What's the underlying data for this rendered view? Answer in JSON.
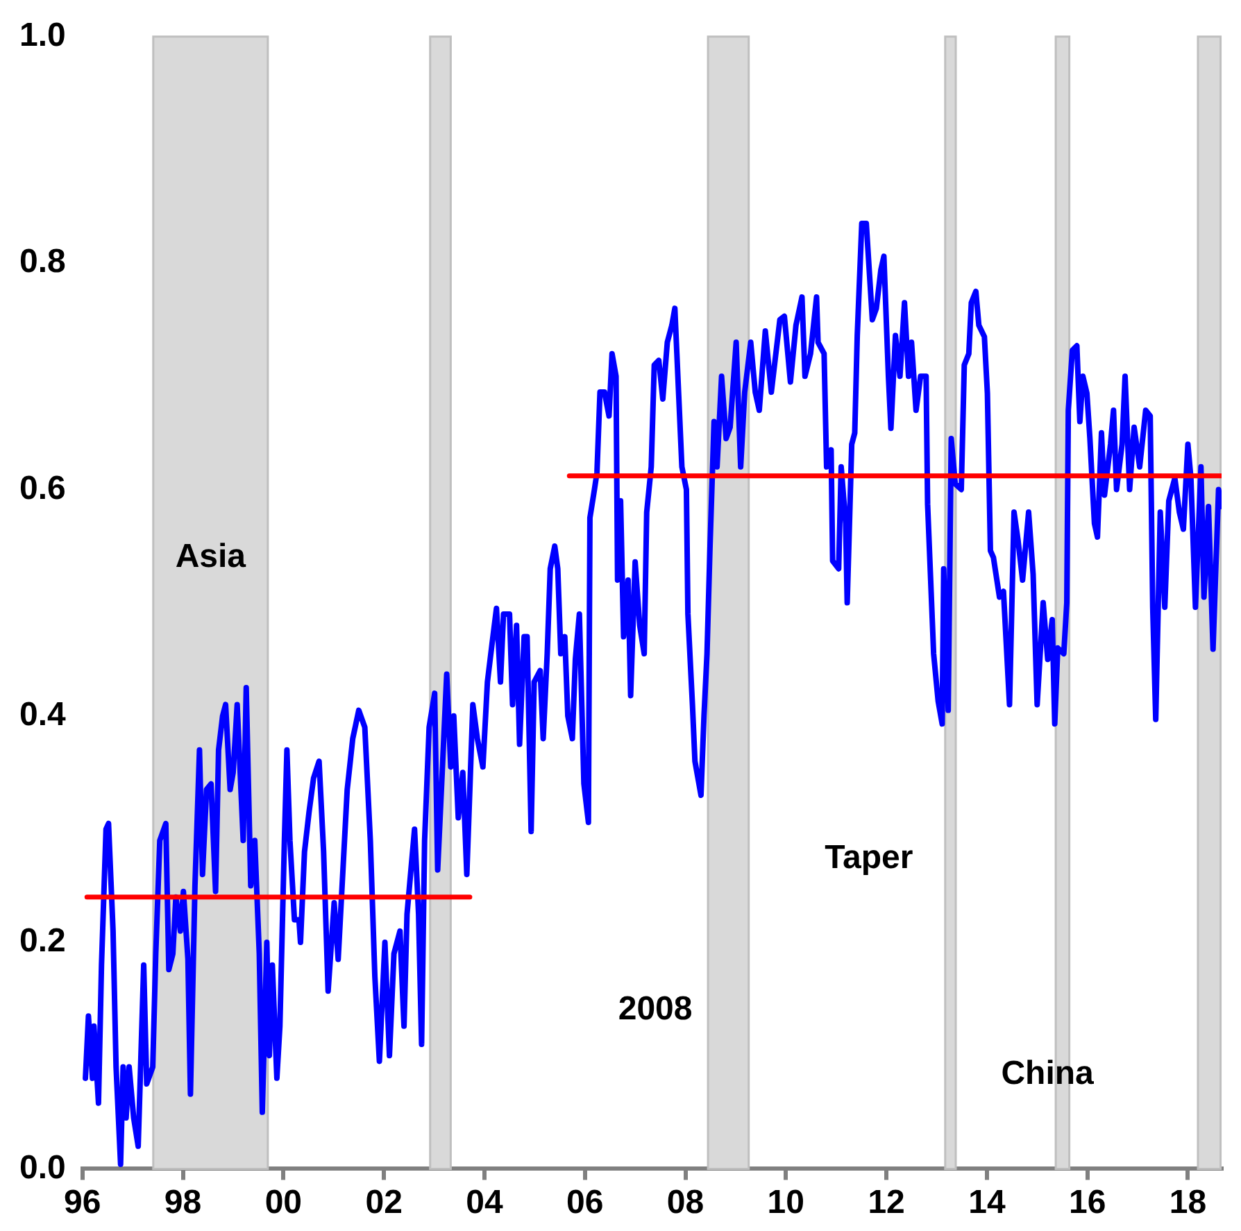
{
  "chart_data": {
    "type": "line",
    "marker": "none",
    "grid": false,
    "legend": false,
    "xlim": [
      1996,
      2018.67
    ],
    "ylim": [
      0,
      1
    ],
    "xticks": [
      {
        "value": 1996,
        "label": "96"
      },
      {
        "value": 1998,
        "label": "98"
      },
      {
        "value": 2000,
        "label": "00"
      },
      {
        "value": 2002,
        "label": "02"
      },
      {
        "value": 2004,
        "label": "04"
      },
      {
        "value": 2006,
        "label": "06"
      },
      {
        "value": 2008,
        "label": "08"
      },
      {
        "value": 2010,
        "label": "10"
      },
      {
        "value": 2012,
        "label": "12"
      },
      {
        "value": 2014,
        "label": "14"
      },
      {
        "value": 2016,
        "label": "16"
      },
      {
        "value": 2018,
        "label": "18"
      }
    ],
    "yticks": [
      {
        "value": 0,
        "label": "0.0"
      },
      {
        "value": 0.2,
        "label": "0.2"
      },
      {
        "value": 0.4,
        "label": "0.4"
      },
      {
        "value": 0.6,
        "label": "0.6"
      },
      {
        "value": 0.8,
        "label": "0.8"
      },
      {
        "value": 1,
        "label": "1.0"
      }
    ],
    "bands": [
      {
        "axis": "x",
        "from": 1997.41,
        "to": 1999.69,
        "color": "#d9d9d9",
        "label": "Asia"
      },
      {
        "axis": "x",
        "from": 2002.92,
        "to": 2003.33,
        "color": "#d9d9d9"
      },
      {
        "axis": "x",
        "from": 2008.45,
        "to": 2009.26,
        "color": "#d9d9d9",
        "label": "2008"
      },
      {
        "axis": "x",
        "from": 2013.17,
        "to": 2013.38,
        "color": "#d9d9d9",
        "label": "Taper"
      },
      {
        "axis": "x",
        "from": 2015.37,
        "to": 2015.64,
        "color": "#d9d9d9",
        "label": "China"
      },
      {
        "axis": "x",
        "from": 2018.2,
        "to": 2018.65,
        "color": "#d9d9d9"
      }
    ],
    "series": [
      {
        "color": "#0000ff",
        "x": [
          1996.06,
          1996.12,
          1996.2,
          1996.23,
          1996.32,
          1996.38,
          1996.47,
          1996.52,
          1996.61,
          1996.67,
          1996.76,
          1996.81,
          1996.87,
          1996.93,
          1997.02,
          1997.11,
          1997.22,
          1997.28,
          1997.4,
          1997.46,
          1997.54,
          1997.66,
          1997.72,
          1997.8,
          1997.86,
          1997.95,
          1998.01,
          1998.1,
          1998.15,
          1998.24,
          1998.33,
          1998.39,
          1998.47,
          1998.56,
          1998.65,
          1998.71,
          1998.79,
          1998.85,
          1998.94,
          1999,
          1999.08,
          1999.2,
          1999.26,
          1999.35,
          1999.43,
          1999.52,
          1999.58,
          1999.67,
          1999.72,
          1999.78,
          1999.87,
          1999.93,
          2000.02,
          2000.07,
          2000.13,
          2000.22,
          2000.31,
          2000.34,
          2000.42,
          2000.51,
          2000.6,
          2000.71,
          2000.8,
          2000.89,
          2001.01,
          2001.09,
          2001.18,
          2001.27,
          2001.38,
          2001.5,
          2001.62,
          2001.73,
          2001.82,
          2001.91,
          2002.02,
          2002.11,
          2002.2,
          2002.32,
          2002.4,
          2002.46,
          2002.61,
          2002.69,
          2002.75,
          2002.81,
          2002.9,
          2003.01,
          2003.07,
          2003.16,
          2003.25,
          2003.33,
          2003.39,
          2003.48,
          2003.57,
          2003.65,
          2003.77,
          2003.86,
          2003.97,
          2004.06,
          2004.15,
          2004.24,
          2004.32,
          2004.38,
          2004.5,
          2004.56,
          2004.64,
          2004.7,
          2004.79,
          2004.85,
          2004.93,
          2004.99,
          2005.11,
          2005.17,
          2005.25,
          2005.31,
          2005.4,
          2005.46,
          2005.52,
          2005.6,
          2005.66,
          2005.75,
          2005.81,
          2005.89,
          2005.98,
          2006.07,
          2006.1,
          2006.19,
          2006.24,
          2006.3,
          2006.39,
          2006.48,
          2006.54,
          2006.62,
          2006.65,
          2006.71,
          2006.77,
          2006.86,
          2006.91,
          2007,
          2007.09,
          2007.18,
          2007.23,
          2007.32,
          2007.38,
          2007.47,
          2007.55,
          2007.64,
          2007.73,
          2007.79,
          2007.87,
          2007.93,
          2008.02,
          2008.05,
          2008.14,
          2008.19,
          2008.31,
          2008.37,
          2008.43,
          2008.49,
          2008.57,
          2008.63,
          2008.72,
          2008.81,
          2008.89,
          2009.01,
          2009.1,
          2009.18,
          2009.3,
          2009.39,
          2009.47,
          2009.59,
          2009.71,
          2009.8,
          2009.88,
          2009.97,
          2010.09,
          2010.2,
          2010.32,
          2010.38,
          2010.49,
          2010.61,
          2010.64,
          2010.76,
          2010.81,
          2010.9,
          2010.93,
          2011.05,
          2011.1,
          2011.19,
          2011.22,
          2011.31,
          2011.37,
          2011.42,
          2011.51,
          2011.6,
          2011.72,
          2011.8,
          2011.89,
          2011.95,
          2012.04,
          2012.09,
          2012.18,
          2012.27,
          2012.36,
          2012.44,
          2012.5,
          2012.59,
          2012.68,
          2012.79,
          2012.82,
          2012.94,
          2013.03,
          2013.11,
          2013.14,
          2013.23,
          2013.29,
          2013.37,
          2013.49,
          2013.55,
          2013.64,
          2013.69,
          2013.78,
          2013.84,
          2013.95,
          2014.01,
          2014.07,
          2014.13,
          2014.25,
          2014.33,
          2014.45,
          2014.54,
          2014.62,
          2014.71,
          2014.83,
          2014.92,
          2015,
          2015.12,
          2015.21,
          2015.3,
          2015.35,
          2015.41,
          2015.53,
          2015.59,
          2015.62,
          2015.7,
          2015.79,
          2015.85,
          2015.91,
          2015.99,
          2016.05,
          2016.14,
          2016.2,
          2016.28,
          2016.34,
          2016.46,
          2016.52,
          2016.58,
          2016.69,
          2016.75,
          2016.84,
          2016.93,
          2017.04,
          2017.16,
          2017.25,
          2017.3,
          2017.36,
          2017.45,
          2017.54,
          2017.62,
          2017.74,
          2017.83,
          2017.91,
          2018,
          2018.06,
          2018.15,
          2018.26,
          2018.32,
          2018.41,
          2018.5,
          2018.61,
          2018.66
        ],
        "values": [
          0.08,
          0.135,
          0.08,
          0.126,
          0.058,
          0.18,
          0.3,
          0.305,
          0.21,
          0.09,
          0.004,
          0.09,
          0.045,
          0.09,
          0.045,
          0.02,
          0.18,
          0.075,
          0.09,
          0.19,
          0.29,
          0.305,
          0.176,
          0.19,
          0.24,
          0.21,
          0.245,
          0.185,
          0.066,
          0.25,
          0.37,
          0.26,
          0.335,
          0.34,
          0.245,
          0.37,
          0.4,
          0.41,
          0.335,
          0.35,
          0.41,
          0.29,
          0.425,
          0.25,
          0.29,
          0.19,
          0.05,
          0.2,
          0.1,
          0.18,
          0.08,
          0.126,
          0.29,
          0.37,
          0.29,
          0.22,
          0.22,
          0.2,
          0.28,
          0.315,
          0.345,
          0.36,
          0.28,
          0.157,
          0.235,
          0.185,
          0.26,
          0.335,
          0.38,
          0.405,
          0.39,
          0.29,
          0.17,
          0.095,
          0.2,
          0.1,
          0.19,
          0.21,
          0.126,
          0.225,
          0.3,
          0.225,
          0.11,
          0.29,
          0.39,
          0.42,
          0.264,
          0.35,
          0.437,
          0.355,
          0.4,
          0.31,
          0.35,
          0.26,
          0.41,
          0.38,
          0.355,
          0.43,
          0.463,
          0.495,
          0.43,
          0.49,
          0.49,
          0.41,
          0.48,
          0.375,
          0.47,
          0.47,
          0.298,
          0.43,
          0.44,
          0.38,
          0.455,
          0.53,
          0.55,
          0.53,
          0.455,
          0.47,
          0.4,
          0.38,
          0.45,
          0.49,
          0.34,
          0.306,
          0.575,
          0.6,
          0.615,
          0.686,
          0.686,
          0.665,
          0.72,
          0.7,
          0.52,
          0.59,
          0.47,
          0.52,
          0.418,
          0.536,
          0.48,
          0.455,
          0.58,
          0.62,
          0.71,
          0.714,
          0.68,
          0.73,
          0.745,
          0.76,
          0.68,
          0.62,
          0.6,
          0.49,
          0.41,
          0.36,
          0.33,
          0.4,
          0.455,
          0.55,
          0.66,
          0.62,
          0.7,
          0.645,
          0.655,
          0.73,
          0.62,
          0.686,
          0.73,
          0.686,
          0.67,
          0.74,
          0.686,
          0.72,
          0.75,
          0.753,
          0.695,
          0.745,
          0.77,
          0.7,
          0.72,
          0.77,
          0.73,
          0.72,
          0.62,
          0.635,
          0.537,
          0.53,
          0.62,
          0.57,
          0.5,
          0.64,
          0.65,
          0.736,
          0.835,
          0.835,
          0.75,
          0.76,
          0.794,
          0.806,
          0.7,
          0.654,
          0.736,
          0.7,
          0.765,
          0.7,
          0.73,
          0.67,
          0.7,
          0.7,
          0.587,
          0.455,
          0.413,
          0.393,
          0.53,
          0.405,
          0.645,
          0.605,
          0.6,
          0.71,
          0.72,
          0.765,
          0.775,
          0.745,
          0.735,
          0.685,
          0.546,
          0.54,
          0.505,
          0.51,
          0.41,
          0.58,
          0.555,
          0.52,
          0.58,
          0.525,
          0.41,
          0.5,
          0.45,
          0.485,
          0.393,
          0.46,
          0.455,
          0.5,
          0.67,
          0.723,
          0.727,
          0.66,
          0.7,
          0.685,
          0.645,
          0.57,
          0.558,
          0.65,
          0.595,
          0.64,
          0.67,
          0.6,
          0.64,
          0.7,
          0.6,
          0.655,
          0.62,
          0.67,
          0.665,
          0.496,
          0.397,
          0.58,
          0.496,
          0.59,
          0.61,
          0.58,
          0.565,
          0.64,
          0.61,
          0.496,
          0.62,
          0.505,
          0.585,
          0.459,
          0.6,
          0.585
        ]
      },
      {
        "type": "line",
        "color": "#ff0000",
        "x": [
          1996.09,
          2003.71
        ],
        "values": [
          0.24,
          0.24
        ]
      },
      {
        "type": "line",
        "color": "#ff0000",
        "x": [
          2005.69,
          2018.67
        ],
        "values": [
          0.612,
          0.612
        ]
      }
    ]
  }
}
